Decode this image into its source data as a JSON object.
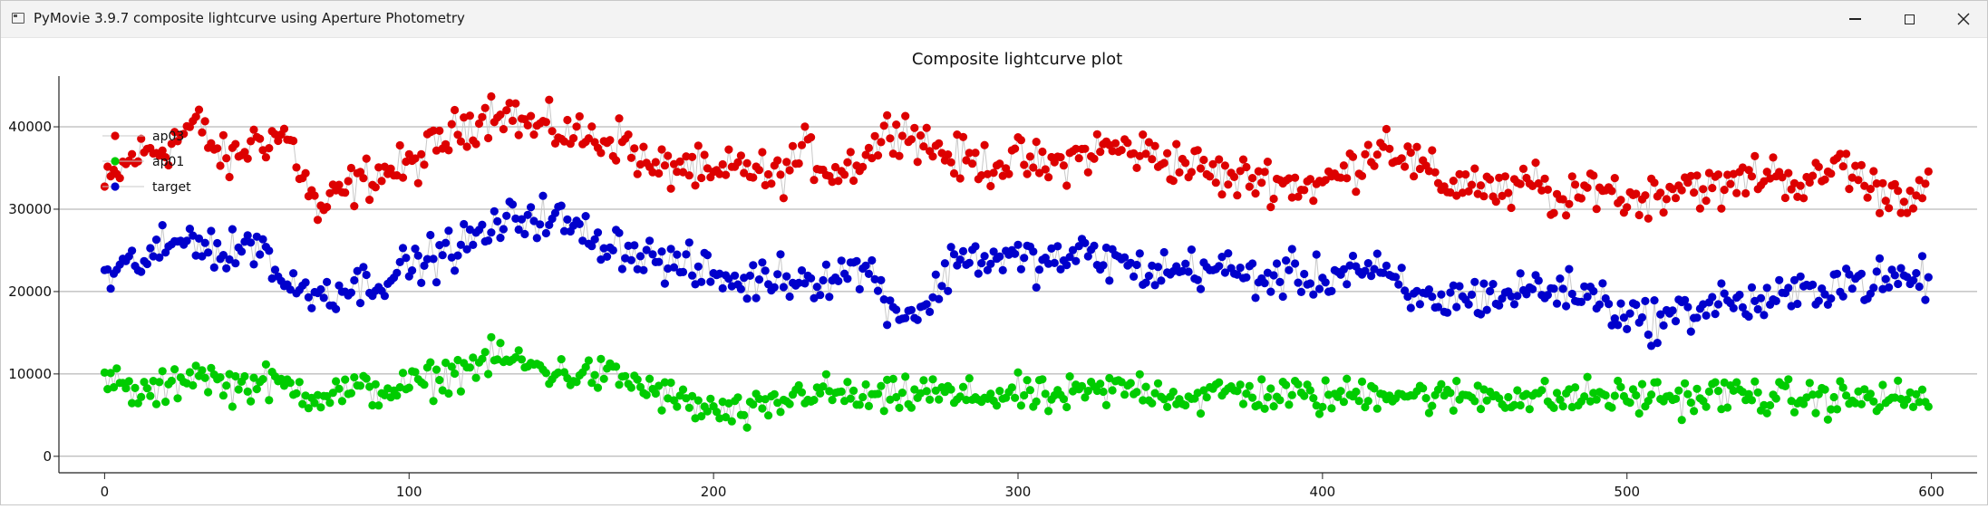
{
  "window": {
    "title": "PyMovie 3.9.7 composite lightcurve using Aperture Photometry",
    "icons": [
      "app-window-icon",
      "minimize-icon",
      "maximize-icon",
      "close-icon"
    ]
  },
  "chart_data": {
    "type": "scatter",
    "title": "Composite lightcurve plot",
    "xlabel": "",
    "ylabel": "",
    "xlim": [
      -15,
      615
    ],
    "ylim": [
      -2000,
      45500
    ],
    "x_ticks": [
      0,
      100,
      200,
      300,
      400,
      500,
      600
    ],
    "x_tick_labels": [
      "0",
      "100",
      "200",
      "300",
      "400",
      "500",
      "600"
    ],
    "y_ticks": [
      0,
      10000,
      20000,
      30000,
      40000
    ],
    "y_tick_labels": [
      "0",
      "10000",
      "20000",
      "30000",
      "40000"
    ],
    "grid": "horizontal",
    "legend_placement": "top-left",
    "series": [
      {
        "name": "ap03",
        "color": "#dd0000",
        "x_range": [
          0,
          599
        ],
        "values_sampled_every_10": [
          32500,
          36500,
          37500,
          40500,
          35500,
          38500,
          39000,
          29500,
          32500,
          34500,
          35000,
          38000,
          40500,
          42500,
          40000,
          39500,
          38500,
          38500,
          34500,
          35500,
          33500,
          35500,
          33500,
          37000,
          34500,
          36500,
          40500,
          38000,
          36000,
          35500,
          36000,
          35000,
          36500,
          37500,
          37000,
          36000,
          35000,
          33500,
          34000,
          33000,
          33000,
          35000,
          38500,
          35500,
          33000,
          33500,
          31500,
          33500,
          30000,
          33500,
          31000,
          32000,
          33500,
          32000,
          34000,
          34500,
          32500,
          36000,
          32500,
          32000
        ]
      },
      {
        "name": "ap01",
        "color": "#00cc00",
        "x_range": [
          0,
          599
        ],
        "values_sampled_every_10": [
          9500,
          7500,
          8000,
          10500,
          8500,
          9000,
          8500,
          7500,
          8000,
          8000,
          8500,
          9500,
          11000,
          12000,
          11000,
          10000,
          10000,
          9500,
          8000,
          6500,
          5500,
          5000,
          6000,
          8000,
          7500,
          7000,
          7000,
          8000,
          7000,
          7500,
          7500,
          7000,
          7500,
          8000,
          8500,
          7500,
          7000,
          8000,
          7500,
          7500,
          7000,
          7500,
          8000,
          7500,
          7000,
          7500,
          7500,
          7000,
          7000,
          7500,
          7000,
          7500,
          7000,
          7500,
          7500,
          7000,
          7000,
          7000,
          7000,
          7000
        ]
      },
      {
        "name": "target",
        "color": "#0000cc",
        "x_range": [
          0,
          599
        ],
        "values_sampled_every_10": [
          21500,
          23500,
          25000,
          27000,
          24000,
          26500,
          20500,
          20000,
          20500,
          21500,
          23000,
          24500,
          26000,
          28000,
          29500,
          28500,
          26500,
          25500,
          24000,
          23000,
          22000,
          21000,
          22000,
          21500,
          22000,
          23000,
          17500,
          18000,
          24500,
          24000,
          24000,
          23500,
          24500,
          24000,
          22500,
          22500,
          23000,
          22500,
          21500,
          22000,
          21500,
          23000,
          22000,
          19000,
          19000,
          19500,
          19500,
          20500,
          20000,
          19500,
          17000,
          16500,
          17500,
          19000,
          18500,
          19000,
          20000,
          21500,
          21000,
          21500
        ]
      }
    ]
  }
}
